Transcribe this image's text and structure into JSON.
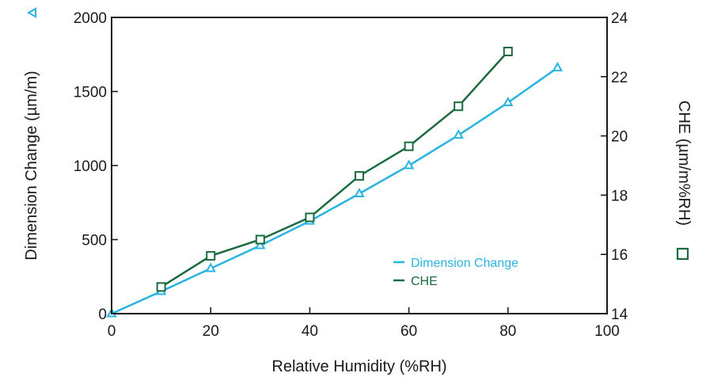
{
  "chart_data": {
    "type": "line",
    "xlabel": "Relative Humidity (%RH)",
    "ylabel": "Dimension Change (µm/m)",
    "y2label": "CHE (µm/m%RH)",
    "xlim": [
      0,
      100
    ],
    "ylim": [
      0,
      2000
    ],
    "y2lim": [
      14,
      24
    ],
    "xticks": [
      "0",
      "20",
      "40",
      "60",
      "80",
      "100"
    ],
    "yticks": [
      "0",
      "500",
      "1000",
      "1500",
      "2000"
    ],
    "y2ticks": [
      "14",
      "16",
      "18",
      "20",
      "22",
      "24"
    ],
    "grid": false,
    "legend_position": "bottom-right",
    "ylabel_marker_icon": "triangle-icon",
    "y2label_marker_icon": "square-icon",
    "series": [
      {
        "name": "Dimension Change",
        "axis": "left",
        "marker": "triangle",
        "color": "#29B4E2",
        "x": [
          0,
          10,
          20,
          30,
          40,
          50,
          60,
          70,
          80,
          90
        ],
        "values": [
          0,
          150,
          305,
          460,
          625,
          810,
          1000,
          1205,
          1425,
          1660
        ]
      },
      {
        "name": "CHE",
        "axis": "right",
        "marker": "square",
        "color": "#1A6B3E",
        "x": [
          10,
          20,
          30,
          40,
          50,
          60,
          70,
          80
        ],
        "values": [
          14.9,
          15.95,
          16.5,
          17.25,
          18.65,
          19.65,
          21.0,
          22.85
        ]
      }
    ]
  }
}
